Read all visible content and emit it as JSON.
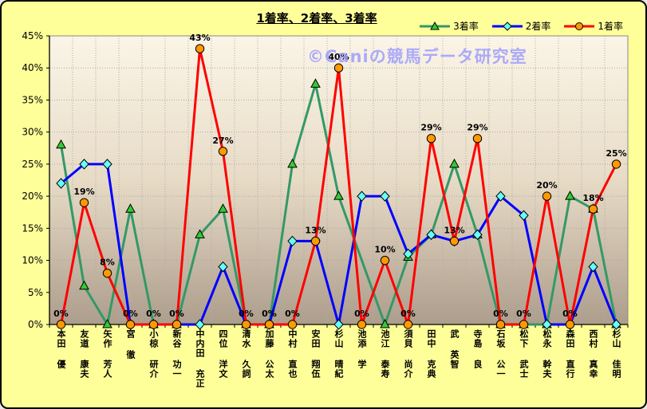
{
  "window": {
    "background": "#FFFF99",
    "border_color": "#000000"
  },
  "title": "1着率、2着率、3着率",
  "watermark": "©Caniの競馬データ研究室",
  "watermark_color": "#9999FF",
  "chart_data": {
    "type": "line",
    "title": "1着率、2着率、3着率",
    "categories": [
      "本田 優",
      "友道 康夫",
      "矢作 芳人",
      "宮 徹",
      "小椋 研介",
      "新谷 功一",
      "中内田 充正",
      "四位 洋文",
      "清水 久詞",
      "加藤 公太",
      "中村 直也",
      "安田 翔伍",
      "杉山 晴紀",
      "池添 学",
      "池江 泰寿",
      "須貝 尚介",
      "田中 克典",
      "武 英智",
      "寺島 良",
      "石坂 公一",
      "松下 武士",
      "松永 幹夫",
      "森田 直行",
      "西村 真幸",
      "杉山 佳明"
    ],
    "series": [
      {
        "name": "3着率",
        "line_color": "#339966",
        "marker": "triangle",
        "marker_color": "#33CC33",
        "values": [
          28,
          6,
          0,
          18,
          0,
          0,
          14,
          18,
          0,
          0,
          25,
          37.5,
          20,
          null,
          0,
          10.5,
          14,
          25,
          14,
          0,
          0,
          0,
          20,
          18,
          0
        ]
      },
      {
        "name": "2着率",
        "line_color": "#0000FF",
        "marker": "diamond",
        "marker_color": "#66FFFF",
        "values": [
          22,
          25,
          25,
          0,
          0,
          0,
          0,
          9,
          0,
          0,
          13,
          13,
          0,
          20,
          20,
          11,
          14,
          13,
          14,
          20,
          17,
          0,
          0,
          9,
          0
        ]
      },
      {
        "name": "1着率",
        "line_color": "#FF0000",
        "marker": "circle",
        "marker_color": "#FF9900",
        "values": [
          0,
          19,
          8,
          0,
          0,
          0,
          43,
          27,
          0,
          0,
          0,
          13,
          40,
          0,
          10,
          0,
          29,
          13,
          29,
          0,
          0,
          20,
          0,
          18,
          25
        ],
        "data_labels": [
          "0%",
          "19%",
          "8%",
          "0%",
          "0%",
          "0%",
          "43%",
          "27%",
          "0%",
          "0%",
          "0%",
          "13%",
          "40%",
          "0%",
          "10%",
          "0%",
          "29%",
          "13%",
          "29%",
          "0%",
          "0%",
          "20%",
          "0%",
          "18%",
          "25%"
        ]
      }
    ],
    "ylim": [
      0,
      45
    ],
    "ytick_step": 5,
    "ytick_labels": [
      "0%",
      "5%",
      "10%",
      "15%",
      "20%",
      "25%",
      "30%",
      "35%",
      "40%",
      "45%"
    ],
    "grid": true,
    "legend_position": "top-right",
    "plot_gradient": [
      "#FBF5E7",
      "#E7DBC6",
      "#AD9D8C"
    ]
  }
}
